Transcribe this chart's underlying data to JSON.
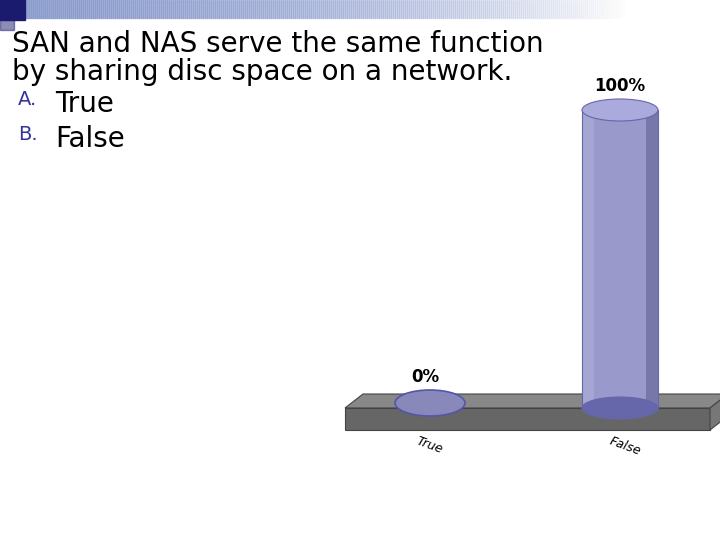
{
  "title_line1": "SAN and NAS serve the same function",
  "title_line2": "by sharing disc space on a network.",
  "option_a": "True",
  "option_b": "False",
  "categories": [
    "True",
    "False"
  ],
  "values": [
    0,
    100
  ],
  "bar_color_body_left": "#9999cc",
  "bar_color_body_right": "#7777aa",
  "bar_color_top": "#aaaadd",
  "bar_color_shadow": "#6666aa",
  "platform_color_top": "#888888",
  "platform_color_front": "#666666",
  "platform_color_right": "#777777",
  "oval_color": "#8888bb",
  "oval_edge_color": "#5555aa",
  "background_color": "#ffffff",
  "label_0": "0%",
  "label_100": "100%",
  "label_color": "#000000",
  "option_letter_color": "#333399",
  "title_fontsize": 20,
  "label_fontsize": 12,
  "option_fontsize": 20,
  "tick_fontsize": 9,
  "header_dark_color": "#1a1a6e",
  "header_light_color": "#8899cc"
}
